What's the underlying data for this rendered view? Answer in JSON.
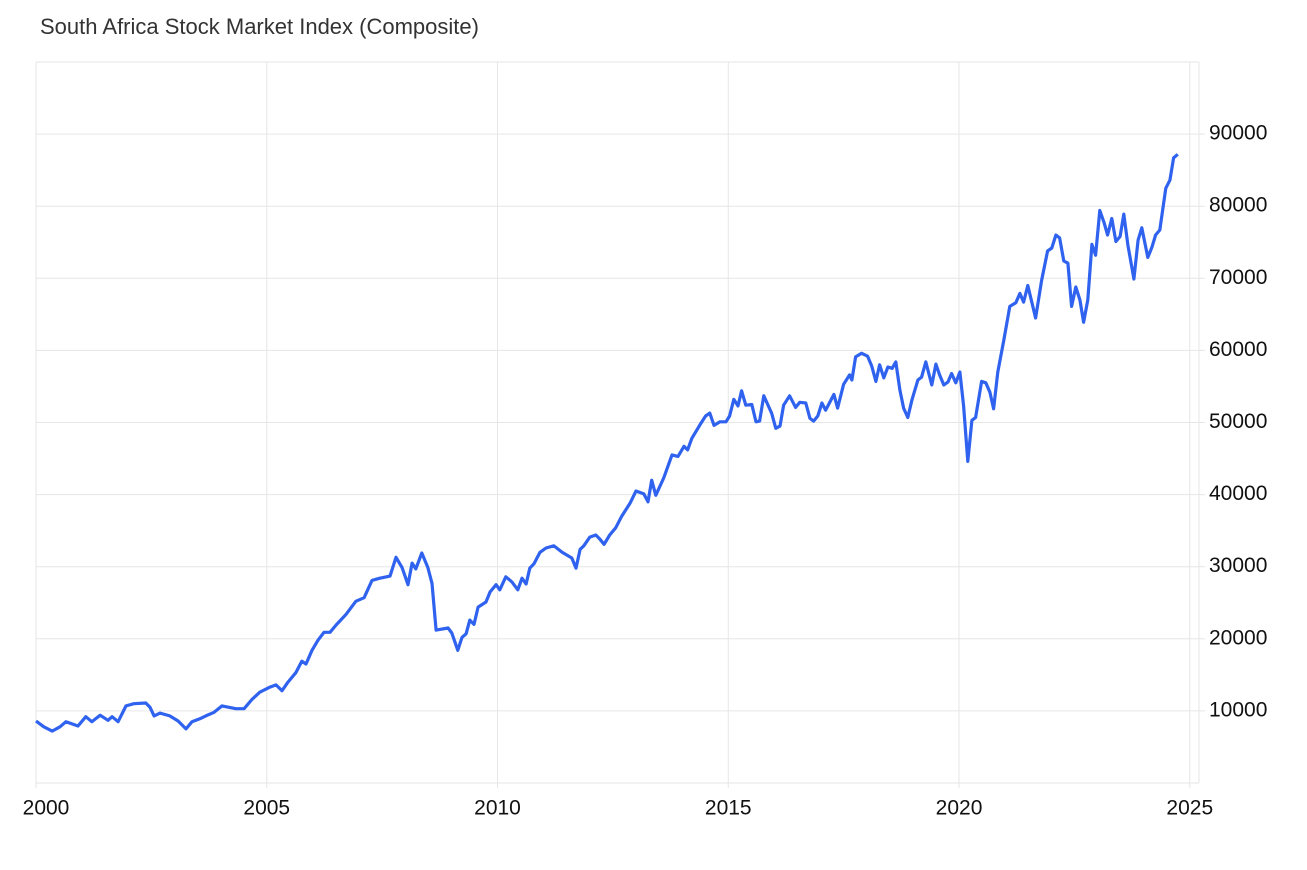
{
  "chart_data": {
    "type": "line",
    "title": "South Africa Stock Market Index (Composite)",
    "x": [
      2000.0,
      2000.17,
      2000.35,
      2000.52,
      2000.65,
      2000.91,
      2001.08,
      2001.21,
      2001.39,
      2001.56,
      2001.65,
      2001.78,
      2001.95,
      2002.12,
      2002.38,
      2002.47,
      2002.56,
      2002.69,
      2002.9,
      2003.08,
      2003.25,
      2003.38,
      2003.55,
      2003.68,
      2003.86,
      2004.03,
      2004.33,
      2004.51,
      2004.68,
      2004.85,
      2005.07,
      2005.2,
      2005.33,
      2005.46,
      2005.63,
      2005.76,
      2005.85,
      2005.98,
      2006.11,
      2006.24,
      2006.37,
      2006.5,
      2006.72,
      2006.93,
      2007.11,
      2007.28,
      2007.45,
      2007.67,
      2007.8,
      2007.93,
      2008.06,
      2008.15,
      2008.23,
      2008.36,
      2008.49,
      2008.58,
      2008.67,
      2008.93,
      2009.01,
      2009.14,
      2009.23,
      2009.32,
      2009.4,
      2009.49,
      2009.58,
      2009.75,
      2009.84,
      2009.97,
      2010.05,
      2010.18,
      2010.31,
      2010.44,
      2010.53,
      2010.62,
      2010.7,
      2010.79,
      2010.92,
      2011.05,
      2011.22,
      2011.4,
      2011.61,
      2011.7,
      2011.79,
      2011.87,
      2012.0,
      2012.13,
      2012.22,
      2012.31,
      2012.43,
      2012.56,
      2012.69,
      2012.87,
      2013.0,
      2013.17,
      2013.26,
      2013.34,
      2013.43,
      2013.6,
      2013.78,
      2013.91,
      2014.04,
      2014.12,
      2014.21,
      2014.38,
      2014.51,
      2014.6,
      2014.69,
      2014.82,
      2014.95,
      2015.03,
      2015.12,
      2015.21,
      2015.29,
      2015.38,
      2015.51,
      2015.6,
      2015.68,
      2015.77,
      2015.94,
      2016.03,
      2016.12,
      2016.2,
      2016.33,
      2016.46,
      2016.55,
      2016.68,
      2016.77,
      2016.85,
      2016.94,
      2017.03,
      2017.11,
      2017.29,
      2017.37,
      2017.5,
      2017.63,
      2017.68,
      2017.76,
      2017.89,
      2018.02,
      2018.11,
      2018.2,
      2018.28,
      2018.37,
      2018.46,
      2018.55,
      2018.63,
      2018.72,
      2018.8,
      2018.89,
      2018.98,
      2019.11,
      2019.19,
      2019.28,
      2019.41,
      2019.5,
      2019.58,
      2019.67,
      2019.76,
      2019.84,
      2019.93,
      2020.02,
      2020.1,
      2020.19,
      2020.28,
      2020.36,
      2020.49,
      2020.58,
      2020.67,
      2020.75,
      2020.84,
      2020.97,
      2021.1,
      2021.23,
      2021.32,
      2021.4,
      2021.49,
      2021.66,
      2021.79,
      2021.92,
      2022.01,
      2022.1,
      2022.18,
      2022.27,
      2022.36,
      2022.44,
      2022.53,
      2022.62,
      2022.7,
      2022.79,
      2022.88,
      2022.96,
      2023.05,
      2023.14,
      2023.22,
      2023.31,
      2023.4,
      2023.49,
      2023.57,
      2023.66,
      2023.79,
      2023.88,
      2023.96,
      2024.09,
      2024.18,
      2024.26,
      2024.35,
      2024.48,
      2024.57,
      2024.65,
      2024.74
    ],
    "series": [
      {
        "color": "#2f62ee",
        "values": [
          8600,
          7800,
          7200,
          7800,
          8500,
          7900,
          9200,
          8500,
          9400,
          8700,
          9200,
          8500,
          10700,
          11000,
          11100,
          10500,
          9300,
          9700,
          9300,
          8600,
          7500,
          8500,
          8900,
          9300,
          9800,
          10700,
          10300,
          10300,
          11600,
          12600,
          13300,
          13600,
          12800,
          14000,
          15300,
          16900,
          16500,
          18400,
          19800,
          20900,
          20900,
          21900,
          23400,
          25200,
          25700,
          28100,
          28400,
          28700,
          31300,
          29900,
          27500,
          30500,
          29700,
          31900,
          29900,
          27700,
          21200,
          21500,
          20800,
          18400,
          20200,
          20700,
          22600,
          22000,
          24400,
          25100,
          26500,
          27500,
          26800,
          28600,
          27900,
          26800,
          28400,
          27600,
          29800,
          30400,
          32000,
          32600,
          32900,
          32000,
          31200,
          29800,
          32400,
          32900,
          34100,
          34400,
          33800,
          33100,
          34400,
          35400,
          37000,
          38800,
          40500,
          40100,
          39000,
          42000,
          39900,
          42300,
          45500,
          45300,
          46700,
          46200,
          47800,
          49600,
          50900,
          51300,
          49600,
          50100,
          50100,
          50900,
          53200,
          52300,
          54400,
          52400,
          52500,
          50100,
          50200,
          53700,
          51300,
          49200,
          49500,
          52400,
          53700,
          52100,
          52800,
          52700,
          50600,
          50200,
          50900,
          52700,
          51700,
          53900,
          52000,
          55300,
          56600,
          55900,
          59100,
          59600,
          59200,
          57800,
          55700,
          58000,
          56200,
          57700,
          57500,
          58400,
          54500,
          52000,
          50700,
          53100,
          55900,
          56300,
          58400,
          55200,
          58100,
          56600,
          55200,
          55600,
          56800,
          55500,
          57000,
          52300,
          44600,
          50300,
          50700,
          55700,
          55500,
          54200,
          51900,
          57000,
          61400,
          66100,
          66600,
          67900,
          66700,
          69000,
          64500,
          69700,
          73800,
          74200,
          76000,
          75600,
          72400,
          72100,
          66100,
          68800,
          67000,
          63900,
          67000,
          74700,
          73200,
          79400,
          77800,
          76000,
          78300,
          75100,
          75800,
          78900,
          74600,
          69900,
          75300,
          77000,
          72900,
          74300,
          76000,
          76700,
          82500,
          83600,
          86700,
          87200
        ]
      }
    ],
    "xlim": [
      2000,
      2025.2
    ],
    "xticks": [
      2000,
      2005,
      2010,
      2015,
      2020,
      2025
    ],
    "ylim": [
      0,
      100000
    ],
    "yticks": [
      10000,
      20000,
      30000,
      40000,
      50000,
      60000,
      70000,
      80000,
      90000
    ],
    "grid": true
  }
}
